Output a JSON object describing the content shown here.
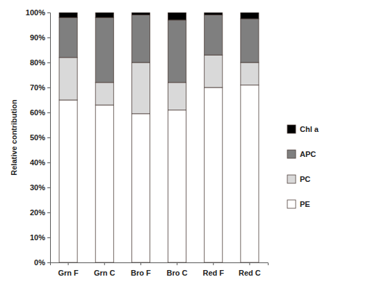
{
  "chart_data": {
    "type": "bar",
    "stacked": true,
    "grid": false,
    "legend": "right",
    "y_label": "Relative contribution",
    "categories": [
      "Grn F",
      "Grn C",
      "Bro F",
      "Bro C",
      "Red F",
      "Red C"
    ],
    "series": [
      {
        "name": "PE",
        "color": "#ffffff",
        "values": [
          65,
          63,
          59.5,
          61,
          70,
          71
        ]
      },
      {
        "name": "PC",
        "color": "#d9d9d9",
        "values": [
          17,
          9,
          20.5,
          11,
          13,
          9
        ]
      },
      {
        "name": "APC",
        "color": "#7f7f7f",
        "values": [
          16,
          26,
          19,
          25,
          16,
          17.5
        ]
      },
      {
        "name": "Chl a",
        "color": "#000000",
        "values": [
          2,
          2,
          1,
          3,
          1,
          2.5
        ]
      }
    ],
    "ylim": [
      0,
      100
    ],
    "yticks": [
      {
        "value": 0,
        "label": "0%"
      },
      {
        "value": 10,
        "label": "10%"
      },
      {
        "value": 20,
        "label": "20%"
      },
      {
        "value": 30,
        "label": "30%"
      },
      {
        "value": 40,
        "label": "40%"
      },
      {
        "value": 50,
        "label": "50%"
      },
      {
        "value": 60,
        "label": "60%"
      },
      {
        "value": 70,
        "label": "70%"
      },
      {
        "value": 80,
        "label": "80%"
      },
      {
        "value": 90,
        "label": "90%"
      },
      {
        "value": 100,
        "label": "100%"
      }
    ]
  }
}
